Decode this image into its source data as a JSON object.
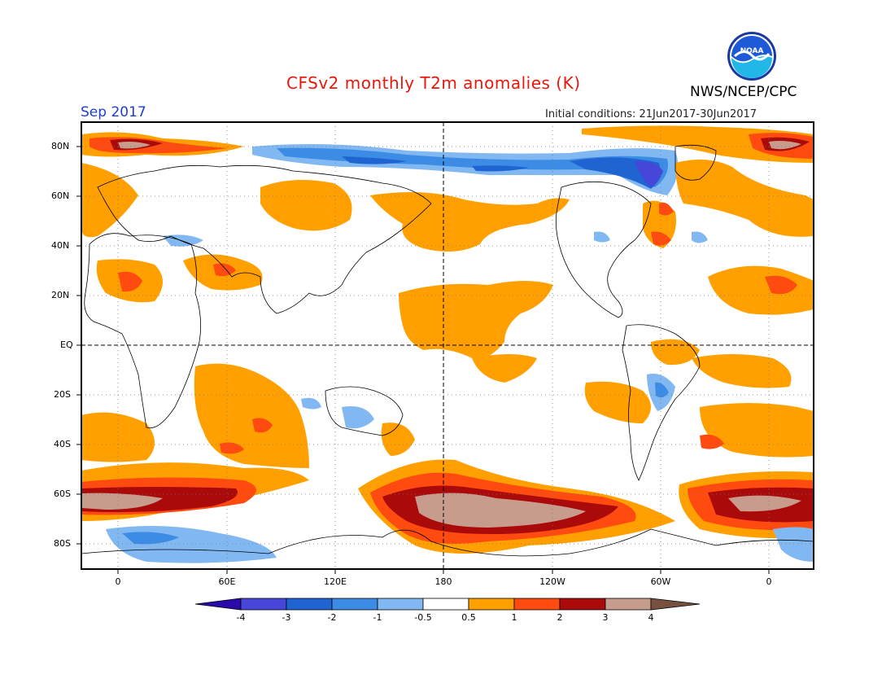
{
  "header": {
    "title": "CFSv2 monthly T2m anomalies (K)",
    "month": "Sep 2017",
    "initial_conditions": "Initial conditions: 21Jun2017-30Jun2017",
    "agency": "NWS/NCEP/CPC",
    "logo_text": "NOAA"
  },
  "map": {
    "lat_labels": [
      "80N",
      "60N",
      "40N",
      "20N",
      "EQ",
      "20S",
      "40S",
      "60S",
      "80S"
    ],
    "lon_labels": [
      "0",
      "60E",
      "120E",
      "180",
      "120W",
      "60W",
      "0"
    ],
    "lon_range": [
      -20,
      380
    ],
    "lat_range": [
      -90,
      90
    ]
  },
  "colorbar": {
    "labels": [
      "-4",
      "-3",
      "-2",
      "-1",
      "-0.5",
      "0.5",
      "1",
      "2",
      "3",
      "4"
    ],
    "colors": [
      "#2a0aa8",
      "#4646d8",
      "#1f64d0",
      "#3c8ce6",
      "#82b8f2",
      "#ffffff",
      "#ffa000",
      "#ff4a10",
      "#aa0a0a",
      "#c89c8c",
      "#785040"
    ]
  },
  "legend_colors": {
    "weak_warm": "#ffa000",
    "warm": "#ff4a10",
    "hot": "#aa0a0a",
    "very_hot": "#c89c8c",
    "weak_cool": "#82b8f2",
    "cool": "#3c8ce6",
    "cold": "#1f64d0",
    "very_cold": "#4646d8"
  }
}
